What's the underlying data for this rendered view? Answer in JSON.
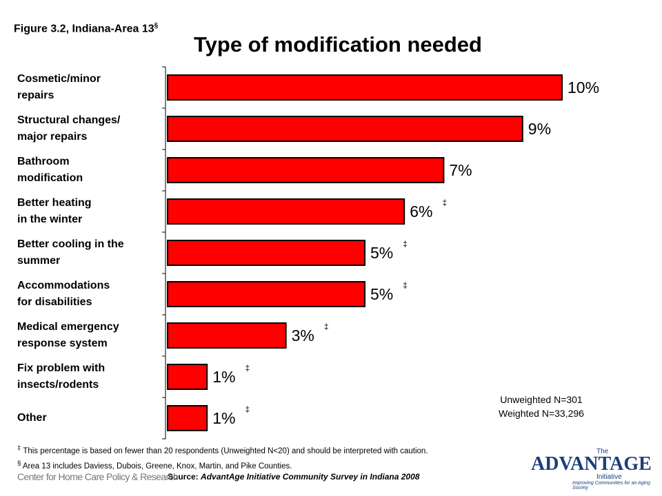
{
  "chart_data": {
    "type": "hbar",
    "figure_label": "Figure 3.2, Indiana-Area 13",
    "figure_mark": "§",
    "title": "Type of modification needed",
    "categories": [
      "Cosmetic/minor\nrepairs",
      "Structural changes/\nmajor repairs",
      "Bathroom\nmodification",
      "Better heating\nin the winter",
      "Better cooling in the\nsummer",
      "Accommodations\nfor disabilities",
      "Medical emergency\nresponse system",
      "Fix problem with\ninsects/rodents",
      "Other"
    ],
    "values": [
      10,
      9,
      7,
      6,
      5,
      5,
      3,
      1,
      1
    ],
    "value_labels": [
      "10%",
      "9%",
      "7%",
      "6%",
      "5%",
      "5%",
      "3%",
      "1%",
      "1%"
    ],
    "value_notes": [
      null,
      null,
      null,
      "‡",
      "‡",
      "‡",
      "‡",
      "‡",
      "‡"
    ],
    "color": "#ff0000",
    "xlim": [
      0,
      10
    ],
    "sample_notes": [
      "Unweighted N=301",
      "Weighted N=33,296"
    ],
    "footnotes": [
      {
        "mark": "‡",
        "text": "This percentage is based on fewer than 20 respondents (Unweighted N<20) and should be interpreted with caution."
      },
      {
        "mark": "§",
        "text": "Area 13 includes Daviess, Dubois, Greene, Knox, Martin, and Pike Counties."
      }
    ],
    "source_label": "Source:",
    "source": "AdvantAge Initiative Community Survey in Indiana 2008",
    "logo_left": "Center for Home Care Policy & Research",
    "logo_right": {
      "pre": "The",
      "name": "ADVANTAGE",
      "sub": "Initiative",
      "tagline": "Improving Communities for an Aging Society"
    }
  }
}
